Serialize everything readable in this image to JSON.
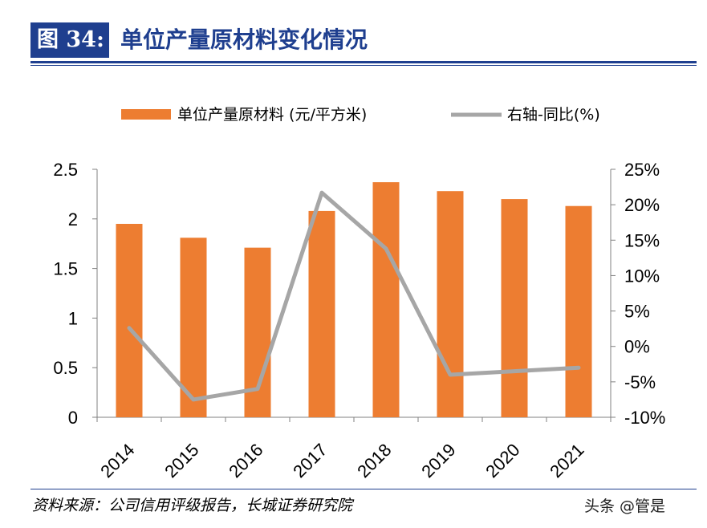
{
  "header": {
    "figure_label": "图 34:",
    "title": "单位产量原材料变化情况"
  },
  "footer": {
    "source": "资料来源：公司信用评级报告，长城证券研究院",
    "watermark": "头条 @管是"
  },
  "colors": {
    "bar": "#ed7d31",
    "line": "#a6a6a6",
    "brand": "#1f3f8f"
  },
  "chart_data": {
    "type": "bar",
    "title": "",
    "categories": [
      "2014",
      "2015",
      "2016",
      "2017",
      "2018",
      "2019",
      "2020",
      "2021"
    ],
    "series": [
      {
        "name": "单位产量原材料 (元/平方米)",
        "type": "bar",
        "axis": "left",
        "values": [
          1.95,
          1.81,
          1.71,
          2.08,
          2.37,
          2.28,
          2.2,
          2.13
        ]
      },
      {
        "name": "右轴-同比(%)",
        "type": "line",
        "axis": "right",
        "values": [
          2.6,
          -7.5,
          -6.0,
          21.7,
          13.8,
          -4.0,
          -3.5,
          -3.0
        ]
      }
    ],
    "y_left": {
      "ylim": [
        0,
        2.5
      ],
      "ticks": [
        "0",
        "0.5",
        "1",
        "1.5",
        "2",
        "2.5"
      ],
      "tick_values": [
        0,
        0.5,
        1,
        1.5,
        2,
        2.5
      ]
    },
    "y_right": {
      "ylim": [
        -10,
        25
      ],
      "ticks": [
        "-10%",
        "-5%",
        "0%",
        "5%",
        "10%",
        "15%",
        "20%",
        "25%"
      ],
      "tick_values": [
        -10,
        -5,
        0,
        5,
        10,
        15,
        20,
        25
      ]
    },
    "legend_position": "top",
    "grid": false
  }
}
